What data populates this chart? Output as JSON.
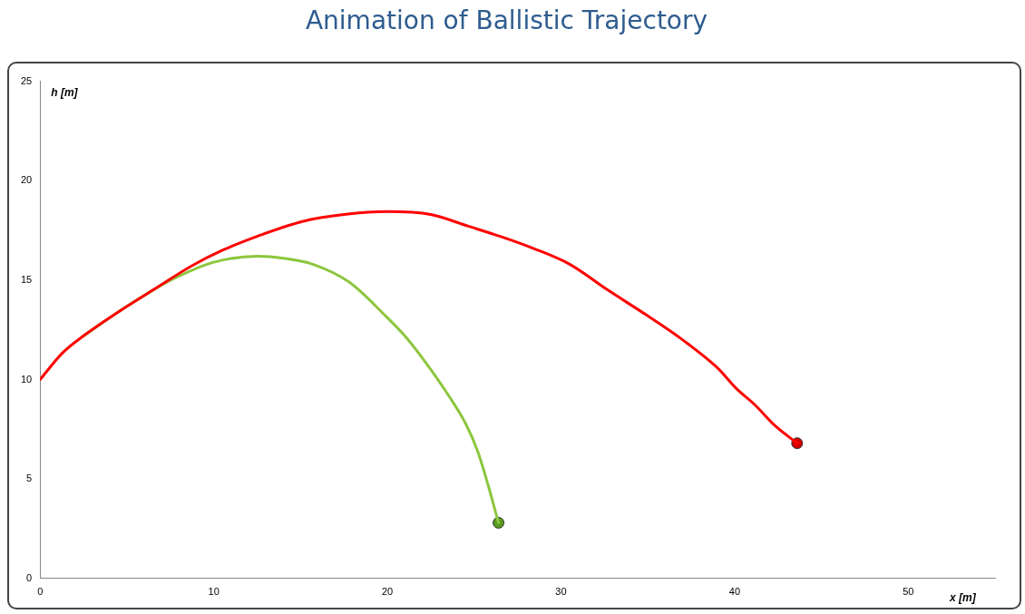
{
  "chart_data": {
    "type": "line",
    "title": "Animation of Ballistic Trajectory",
    "xlabel": "x [m]",
    "ylabel": "h [m]",
    "xlim": [
      0,
      55
    ],
    "xticks": [
      0,
      10,
      20,
      30,
      40,
      50
    ],
    "ylim": [
      0,
      25
    ],
    "yticks": [
      0,
      5,
      10,
      15,
      20,
      25
    ],
    "grid": false,
    "marker": "none",
    "line_style": "solid",
    "series": [
      {
        "color": "#ff0000",
        "x": [
          0,
          1.3,
          2.5,
          4.5,
          6.5,
          8.7,
          10.5,
          12.5,
          15.1,
          17.5,
          20,
          22.5,
          24.7,
          26.5,
          28.4,
          30.5,
          32.7,
          35,
          37,
          39,
          40.1,
          41.2,
          42.3,
          43.6
        ],
        "values": [
          10,
          11.35,
          12.2,
          13.4,
          14.5,
          15.7,
          16.5,
          17.2,
          17.95,
          18.3,
          18.45,
          18.3,
          17.7,
          17.2,
          16.6,
          15.8,
          14.5,
          13.2,
          12.0,
          10.6,
          9.55,
          8.7,
          7.7,
          6.8
        ]
      },
      {
        "color": "#8cc63e",
        "x": [
          2.5,
          4.5,
          6.5,
          8,
          10,
          12.5,
          14,
          15.7,
          17.8,
          19.9,
          21,
          22,
          23.6,
          24.5,
          25.2,
          25.8,
          26.4
        ],
        "values": [
          12.2,
          13.4,
          14.5,
          15.2,
          15.9,
          16.2,
          16.1,
          15.8,
          14.9,
          13.2,
          12.2,
          11.1,
          9.1,
          7.8,
          6.4,
          4.7,
          2.8
        ]
      },
      {
        "type": "scatter",
        "marker": "circle",
        "color": "#d40000",
        "x": [
          43.6
        ],
        "values": [
          6.8
        ]
      },
      {
        "type": "scatter",
        "marker": "circle",
        "color": "#5a9a1e",
        "x": [
          26.4
        ],
        "values": [
          2.8
        ]
      }
    ]
  }
}
